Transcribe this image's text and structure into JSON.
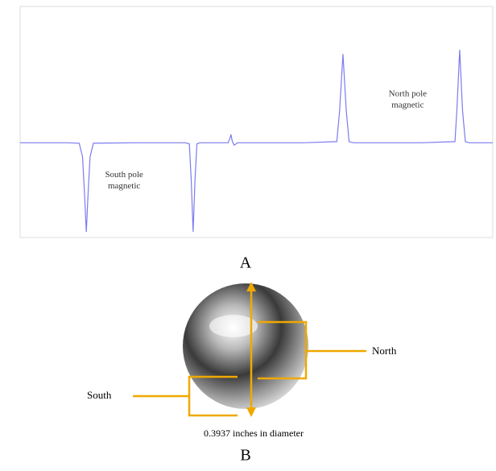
{
  "chart_data": {
    "type": "line",
    "series": [
      {
        "color": "#7b7bf0",
        "x": [
          0,
          10,
          12.5,
          13.2,
          13.6,
          14,
          14.4,
          14.8,
          15.5,
          25,
          35,
          35.8,
          36.2,
          36.6,
          37,
          37.4,
          38,
          44,
          44.4,
          44.6,
          44.9,
          45.3,
          46,
          60,
          67,
          67.6,
          68.3,
          69,
          69.6,
          70.5,
          85,
          92,
          92.4,
          93,
          93.6,
          94.2,
          95,
          100
        ],
        "values": [
          41,
          41,
          40.8,
          35,
          20,
          2.4,
          20,
          35,
          40.8,
          41,
          41,
          40.5,
          25,
          2.5,
          25,
          40.5,
          41,
          41,
          43,
          44.6,
          41.5,
          40,
          41,
          41,
          41.5,
          55,
          79.4,
          55,
          41.5,
          41,
          41,
          41.5,
          55,
          81.2,
          55,
          41.5,
          41,
          41
        ]
      }
    ],
    "xlim": [
      0,
      100
    ],
    "ylim": [
      0,
      100
    ],
    "annotations": [
      {
        "lines": [
          "South pole",
          "magnetic"
        ],
        "x": 22,
        "y": 27
      },
      {
        "lines": [
          "North pole",
          "magnetic"
        ],
        "x": 82,
        "y": 62
      }
    ]
  },
  "panel_labels": [
    "A",
    "B"
  ],
  "photo": {
    "north": "North",
    "south": "South",
    "diameter": "0.3937 inches in diameter"
  }
}
